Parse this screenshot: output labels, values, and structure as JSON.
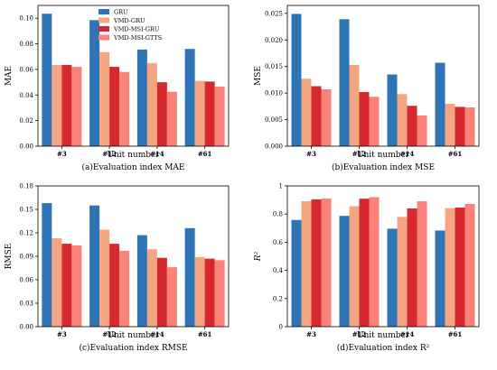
{
  "chart_data": [
    {
      "type": "bar",
      "title": "",
      "caption": "(a)Evaluation index MAE",
      "xlabel": "Unit number",
      "ylabel": "MAE",
      "categories": [
        "#3",
        "#12",
        "#14",
        "#61"
      ],
      "ylim": [
        0,
        0.11
      ],
      "yticks": [
        "0.00",
        "0.02",
        "0.04",
        "0.06",
        "0.08",
        "0.10"
      ],
      "ytick_values": [
        0,
        0.02,
        0.04,
        0.06,
        0.08,
        0.1
      ],
      "legend": "top-center",
      "series": [
        {
          "name": "GRU",
          "color": "#2f74b5",
          "values": [
            0.1035,
            0.0985,
            0.0755,
            0.076
          ]
        },
        {
          "name": "VMD-GRU",
          "color": "#f4a582",
          "values": [
            0.0635,
            0.0735,
            0.065,
            0.051
          ]
        },
        {
          "name": "VMD-MSI-GRU",
          "color": "#d6292f",
          "values": [
            0.0635,
            0.062,
            0.05,
            0.0505
          ]
        },
        {
          "name": "VMD-MSI-GTTS",
          "color": "#f98279",
          "values": [
            0.062,
            0.058,
            0.0425,
            0.0465
          ]
        }
      ]
    },
    {
      "type": "bar",
      "title": "",
      "caption": "(b)Evaluation index MSE",
      "xlabel": "Unit number",
      "ylabel": "MSE",
      "categories": [
        "#3",
        "#12",
        "#14",
        "#61"
      ],
      "ylim": [
        0,
        0.0265
      ],
      "yticks": [
        "0.000",
        "0.005",
        "0.010",
        "0.015",
        "0.020",
        "0.025"
      ],
      "ytick_values": [
        0,
        0.005,
        0.01,
        0.015,
        0.02,
        0.025
      ],
      "series": [
        {
          "name": "GRU",
          "color": "#2f74b5",
          "values": [
            0.0249,
            0.0239,
            0.0135,
            0.0157
          ]
        },
        {
          "name": "VMD-GRU",
          "color": "#f4a582",
          "values": [
            0.0127,
            0.0153,
            0.0098,
            0.008
          ]
        },
        {
          "name": "VMD-MSI-GRU",
          "color": "#d6292f",
          "values": [
            0.0113,
            0.0102,
            0.0076,
            0.0074
          ]
        },
        {
          "name": "VMD-MSI-GTTS",
          "color": "#f98279",
          "values": [
            0.0107,
            0.0093,
            0.0058,
            0.0073
          ]
        }
      ]
    },
    {
      "type": "bar",
      "title": "",
      "caption": "(c)Evaluation index RMSE",
      "xlabel": "Unit number",
      "ylabel": "RMSE",
      "categories": [
        "#3",
        "#12",
        "#14",
        "#61"
      ],
      "ylim": [
        0,
        0.18
      ],
      "yticks": [
        "0.00",
        "0.03",
        "0.06",
        "0.09",
        "0.12",
        "0.15",
        "0.18"
      ],
      "ytick_values": [
        0,
        0.03,
        0.06,
        0.09,
        0.12,
        0.15,
        0.18
      ],
      "series": [
        {
          "name": "GRU",
          "color": "#2f74b5",
          "values": [
            0.158,
            0.155,
            0.117,
            0.126
          ]
        },
        {
          "name": "VMD-GRU",
          "color": "#f4a582",
          "values": [
            0.113,
            0.124,
            0.099,
            0.089
          ]
        },
        {
          "name": "VMD-MSI-GRU",
          "color": "#d6292f",
          "values": [
            0.106,
            0.106,
            0.088,
            0.087
          ]
        },
        {
          "name": "VMD-MSI-GTTS",
          "color": "#f98279",
          "values": [
            0.104,
            0.097,
            0.076,
            0.085
          ]
        }
      ]
    },
    {
      "type": "bar",
      "title": "",
      "caption": "(d)Evaluation index R²",
      "xlabel": "Unit number",
      "ylabel": "R²",
      "categories": [
        "#3",
        "#12",
        "#14",
        "#61"
      ],
      "ylim": [
        0,
        1.0
      ],
      "yticks": [
        "0",
        "0.2",
        "0.4",
        "0.6",
        "0.8",
        "1"
      ],
      "ytick_values": [
        0,
        0.2,
        0.4,
        0.6,
        0.8,
        1.0
      ],
      "series": [
        {
          "name": "GRU",
          "color": "#2f74b5",
          "values": [
            0.758,
            0.787,
            0.696,
            0.683
          ]
        },
        {
          "name": "VMD-GRU",
          "color": "#f4a582",
          "values": [
            0.891,
            0.856,
            0.78,
            0.842
          ]
        },
        {
          "name": "VMD-MSI-GRU",
          "color": "#d6292f",
          "values": [
            0.904,
            0.909,
            0.84,
            0.846
          ]
        },
        {
          "name": "VMD-MSI-GTTS",
          "color": "#f98279",
          "values": [
            0.91,
            0.92,
            0.891,
            0.872
          ]
        }
      ]
    }
  ]
}
